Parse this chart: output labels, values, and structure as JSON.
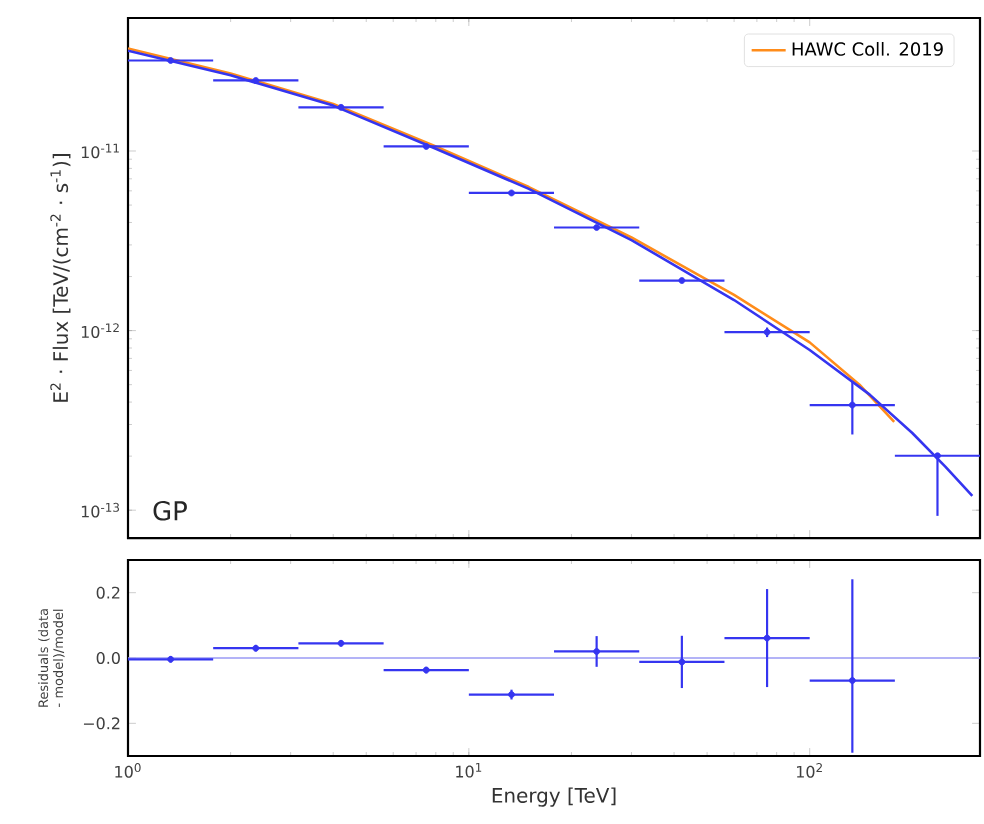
{
  "chart_data": [
    {
      "type": "line",
      "ylabel": "E$^{2}$ · Flux [TeV/(cm$^{-2}$ · s$^{-1}$)]",
      "annotations": [
        "GP"
      ],
      "log": "xy",
      "xlim": [
        1,
        316
      ],
      "ylim": [
        7e-14,
        5.5e-11
      ],
      "xticks": [
        {
          "value": 1,
          "label": null
        },
        {
          "value": 10,
          "label": null
        },
        {
          "value": 100,
          "label": null
        }
      ],
      "yticks": [
        {
          "value": 1e-13,
          "label": "10$^{-13}$"
        },
        {
          "value": 1e-12,
          "label": "10$^{-12}$"
        },
        {
          "value": 1e-11,
          "label": "10$^{-11}$"
        }
      ],
      "tick_labels": "y",
      "legend": "top right",
      "grid": false,
      "series": [
        {
          "color": "#ff8c1a",
          "name": "HAWC Coll. 2019",
          "x": [
            1,
            2,
            4,
            8,
            15,
            30,
            60,
            100,
            140,
            177
          ],
          "values": [
            3.72e-11,
            2.7e-11,
            1.83e-11,
            1.06e-11,
            6.3e-12,
            3.3e-12,
            1.58e-12,
            8.6e-13,
            5e-13,
            3.1e-13
          ]
        },
        {
          "color": "#3535f0",
          "x": [
            1,
            2,
            4,
            8,
            15,
            30,
            60,
            100,
            150,
            200,
            250,
            300
          ],
          "values": [
            3.62e-11,
            2.64e-11,
            1.79e-11,
            1.03e-11,
            6.15e-12,
            3.19e-12,
            1.48e-12,
            7.8e-13,
            4.4e-13,
            2.69e-13,
            1.75e-13,
            1.2e-13
          ]
        },
        {
          "type": "scatter",
          "color": "#3535f0",
          "x": [
            1.334,
            2.371,
            4.217,
            7.499,
            13.34,
            23.71,
            42.17,
            74.99,
            133.4,
            237.1
          ],
          "values": [
            3.19e-11,
            2.47e-11,
            1.75e-11,
            1.06e-11,
            5.84e-12,
            3.75e-12,
            1.9e-12,
            9.8e-13,
            3.85e-13,
            2.01e-13
          ],
          "xerrors": [
            [
              1,
              1.778
            ],
            [
              1.778,
              3.162
            ],
            [
              3.162,
              5.623
            ],
            [
              5.623,
              10
            ],
            [
              10,
              17.78
            ],
            [
              17.78,
              31.62
            ],
            [
              31.62,
              56.23
            ],
            [
              56.23,
              100
            ],
            [
              100,
              177.8
            ],
            [
              177.8,
              316
            ]
          ],
          "errors": [
            null,
            null,
            null,
            null,
            null,
            null,
            null,
            [
              9.2e-13,
              1.04e-12
            ],
            [
              2.64e-13,
              5.24e-13
            ],
            [
              9.3e-14,
              2.01e-13
            ]
          ]
        }
      ]
    },
    {
      "type": "scatter",
      "xlabel": "Energy [TeV]",
      "ylabel": "Residuals (data - model)/model",
      "log": "x",
      "xlim": [
        1,
        316
      ],
      "ylim": [
        -0.3,
        0.3
      ],
      "xticks": [
        {
          "value": 1,
          "label": "10$^{0}$"
        },
        {
          "value": 10,
          "label": "10$^{1}$"
        },
        {
          "value": 100,
          "label": "10$^{2}$"
        }
      ],
      "yticks": [
        {
          "value": -0.2,
          "label": "−0.2"
        },
        {
          "value": 0,
          "label": "0.0"
        },
        {
          "value": 0.2,
          "label": "0.2"
        }
      ],
      "grid": false,
      "ref_lines": [
        {
          "axis": "y",
          "value": 0,
          "color": "#9a9af5"
        }
      ],
      "series": [
        {
          "color": "#3535f0",
          "x": [
            1.334,
            2.371,
            4.217,
            7.499,
            13.34,
            23.71,
            42.17,
            74.99,
            133.4
          ],
          "values": [
            -0.004,
            0.03,
            0.045,
            -0.037,
            -0.112,
            0.02,
            -0.012,
            0.061,
            -0.069
          ],
          "xerrors": [
            [
              1,
              1.778
            ],
            [
              1.778,
              3.162
            ],
            [
              3.162,
              5.623
            ],
            [
              5.623,
              10
            ],
            [
              10,
              17.78
            ],
            [
              17.78,
              31.62
            ],
            [
              31.62,
              56.23
            ],
            [
              56.23,
              100
            ],
            [
              100,
              177.8
            ]
          ],
          "errors": [
            0.01,
            0.01,
            0.01,
            0.01,
            0.015,
            0.047,
            0.08,
            0.15,
            [
              -0.29,
              0.241
            ]
          ]
        }
      ]
    }
  ]
}
